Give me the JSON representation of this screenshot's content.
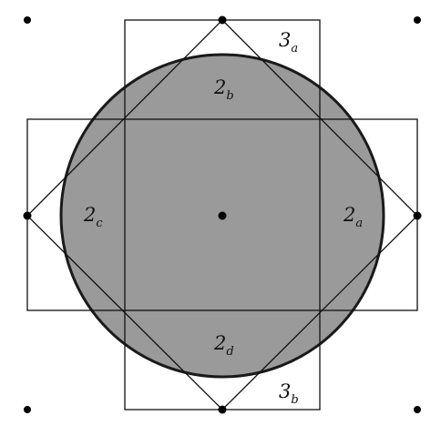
{
  "figure": {
    "colors": {
      "disk_fill": "#9a9a9a",
      "disk_stroke": "#1a1a1a",
      "line": "#111111",
      "dot": "#000000"
    },
    "labels": {
      "region_3a": {
        "main": "3",
        "sub": "a"
      },
      "region_2b": {
        "main": "2",
        "sub": "b"
      },
      "region_2c": {
        "main": "2",
        "sub": "c"
      },
      "region_2a": {
        "main": "2",
        "sub": "a"
      },
      "region_2d": {
        "main": "2",
        "sub": "d"
      },
      "region_3b": {
        "main": "3",
        "sub": "b"
      }
    }
  }
}
